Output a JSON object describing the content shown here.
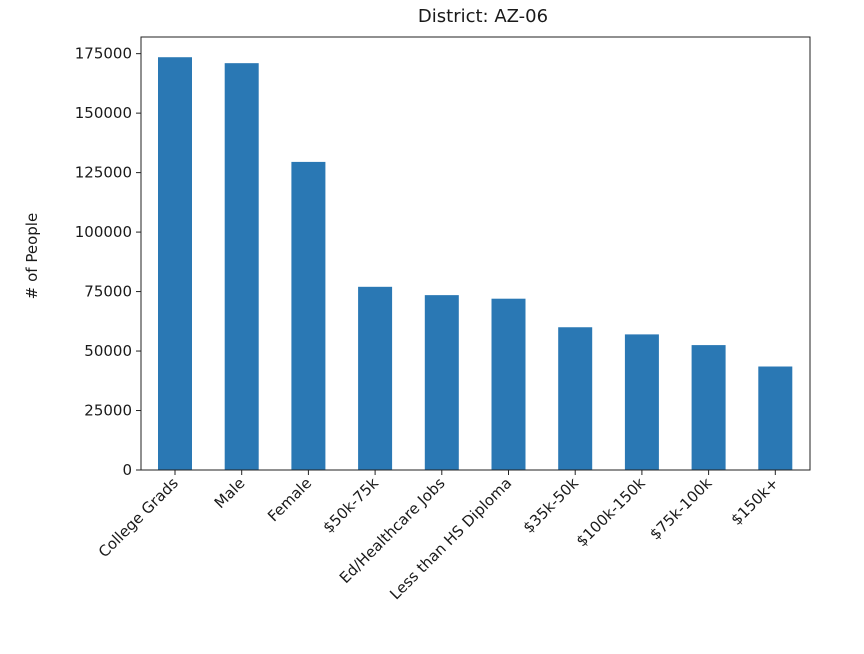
{
  "chart_data": {
    "type": "bar",
    "title": "District: AZ-06",
    "xlabel": "",
    "ylabel": "# of People",
    "categories": [
      "College Grads",
      "Male",
      "Female",
      "$50k-75k",
      "Ed/Healthcare Jobs",
      "Less than HS Diploma",
      "$35k-50k",
      "$100k-150k",
      "$75k-100k",
      "$150k+"
    ],
    "values": [
      173500,
      171000,
      129500,
      77000,
      73500,
      72000,
      60000,
      57000,
      52500,
      43500
    ],
    "ylim": [
      0,
      182000
    ],
    "yticks": [
      0,
      25000,
      50000,
      75000,
      100000,
      125000,
      150000,
      175000
    ],
    "ytick_labels": [
      "0",
      "25000",
      "50000",
      "75000",
      "100000",
      "125000",
      "150000",
      "175000"
    ],
    "bar_color": "#2a78b4",
    "grid": false,
    "legend": "none"
  }
}
